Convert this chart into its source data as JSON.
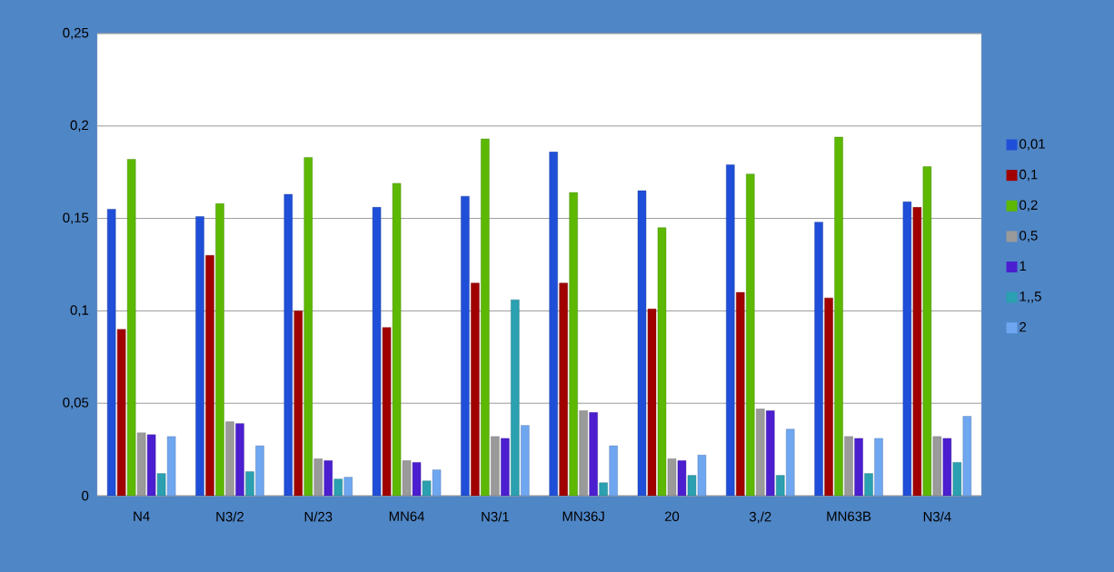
{
  "chart_data": {
    "type": "bar",
    "categories": [
      "N4",
      "N3/2",
      "N/23",
      "MN64",
      "N3/1",
      "MN36J",
      "20",
      "3,/2",
      "MN63B",
      "N3/4"
    ],
    "series": [
      {
        "name": "0,01",
        "color": "#1f4fd8",
        "values": [
          0.155,
          0.151,
          0.163,
          0.156,
          0.162,
          0.186,
          0.165,
          0.179,
          0.148,
          0.159
        ]
      },
      {
        "name": "0,1",
        "color": "#a00000",
        "values": [
          0.09,
          0.13,
          0.1,
          0.091,
          0.115,
          0.115,
          0.101,
          0.11,
          0.107,
          0.156
        ]
      },
      {
        "name": "0,2",
        "color": "#5cb800",
        "values": [
          0.182,
          0.158,
          0.183,
          0.169,
          0.193,
          0.164,
          0.145,
          0.174,
          0.194,
          0.178
        ]
      },
      {
        "name": "0,5",
        "color": "#9a9a9a",
        "values": [
          0.034,
          0.04,
          0.02,
          0.019,
          0.032,
          0.046,
          0.02,
          0.047,
          0.032,
          0.032
        ]
      },
      {
        "name": "1",
        "color": "#4b1ed0",
        "values": [
          0.033,
          0.039,
          0.019,
          0.018,
          0.031,
          0.045,
          0.019,
          0.046,
          0.031,
          0.031
        ]
      },
      {
        "name": "1,,5",
        "color": "#2aa0b0",
        "values": [
          0.012,
          0.013,
          0.009,
          0.008,
          0.106,
          0.007,
          0.011,
          0.011,
          0.012,
          0.018
        ]
      },
      {
        "name": "2",
        "color": "#6fa6f0",
        "values": [
          0.032,
          0.027,
          0.01,
          0.014,
          0.038,
          0.027,
          0.022,
          0.036,
          0.031,
          0.043
        ]
      }
    ],
    "ylim": [
      0,
      0.25
    ],
    "yticks": [
      0,
      {
        "value": 0.05,
        "label": "0,05"
      },
      {
        "value": 0.1,
        "label": "0,1"
      },
      {
        "value": 0.15,
        "label": "0,15"
      },
      {
        "value": 0.2,
        "label": "0,2"
      },
      {
        "value": 0.25,
        "label": "0,25"
      }
    ],
    "grid": "y",
    "legend": "right"
  }
}
